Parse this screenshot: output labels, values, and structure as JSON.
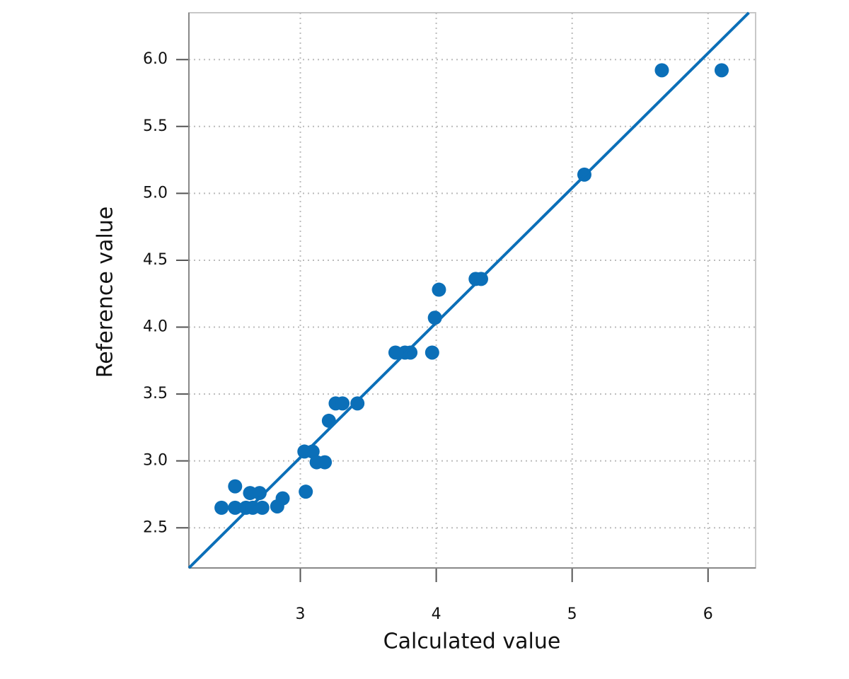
{
  "chart_data": {
    "type": "scatter",
    "x_label": "Calculated value",
    "y_label": "Reference value",
    "xlim": [
      2.18,
      6.35
    ],
    "ylim": [
      2.2,
      6.35
    ],
    "xticks": [
      3,
      4,
      5,
      6
    ],
    "yticks": [
      {
        "value": 2.5,
        "label": "2.5"
      },
      {
        "value": 3,
        "label": "3.0"
      },
      {
        "value": 3.5,
        "label": "3.5"
      },
      {
        "value": 4,
        "label": "4.0"
      },
      {
        "value": 4.5,
        "label": "4.5"
      },
      {
        "value": 5,
        "label": "5.0"
      },
      {
        "value": 5.5,
        "label": "5.5"
      },
      {
        "value": 6,
        "label": "6.0"
      }
    ],
    "grid": true,
    "series": [
      {
        "type": "scatter",
        "color": "#0b6fb8",
        "x": [
          2.42,
          2.52,
          2.52,
          2.6,
          2.63,
          2.65,
          2.7,
          2.72,
          2.83,
          2.87,
          3.04,
          3.03,
          3.09,
          3.12,
          3.18,
          3.21,
          3.26,
          3.31,
          3.42,
          3.7,
          3.77,
          3.81,
          3.97,
          3.99,
          4.02,
          4.29,
          4.33,
          5.09,
          5.66,
          6.1
        ],
        "values": [
          2.65,
          2.81,
          2.65,
          2.65,
          2.76,
          2.65,
          2.76,
          2.65,
          2.66,
          2.72,
          2.77,
          3.07,
          3.07,
          2.99,
          2.99,
          3.3,
          3.43,
          3.43,
          3.43,
          3.81,
          3.81,
          3.81,
          3.81,
          4.07,
          4.28,
          4.36,
          4.36,
          5.14,
          5.92,
          5.92
        ]
      },
      {
        "type": "line",
        "color": "#0b6fb8",
        "x": [
          2.18,
          6.3
        ],
        "values": [
          2.2,
          6.35
        ]
      }
    ]
  }
}
